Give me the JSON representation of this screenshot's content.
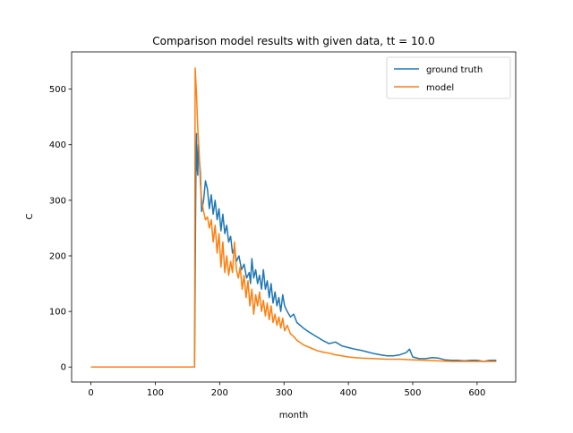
{
  "chart_data": {
    "type": "line",
    "title": "Comparison model results with given data, tt = 10.0",
    "xlabel": "month",
    "ylabel": "C",
    "xlim": [
      -30,
      660
    ],
    "ylim": [
      -27,
      567
    ],
    "xticks": [
      0,
      100,
      200,
      300,
      400,
      500,
      600
    ],
    "yticks": [
      0,
      100,
      200,
      300,
      400,
      500
    ],
    "grid": false,
    "legend_position": "top-right",
    "series": [
      {
        "name": "ground truth",
        "color": "#1f77b4",
        "points": [
          [
            0,
            0
          ],
          [
            160,
            0
          ],
          [
            161,
            0
          ],
          [
            163,
            330
          ],
          [
            164,
            420
          ],
          [
            165,
            360
          ],
          [
            166,
            345
          ],
          [
            167,
            400
          ],
          [
            168,
            380
          ],
          [
            170,
            350
          ],
          [
            172,
            280
          ],
          [
            175,
            300
          ],
          [
            178,
            335
          ],
          [
            181,
            320
          ],
          [
            184,
            285
          ],
          [
            187,
            310
          ],
          [
            190,
            275
          ],
          [
            193,
            300
          ],
          [
            196,
            265
          ],
          [
            199,
            285
          ],
          [
            202,
            245
          ],
          [
            205,
            275
          ],
          [
            208,
            240
          ],
          [
            211,
            255
          ],
          [
            214,
            225
          ],
          [
            217,
            235
          ],
          [
            220,
            205
          ],
          [
            223,
            215
          ],
          [
            226,
            190
          ],
          [
            230,
            200
          ],
          [
            234,
            175
          ],
          [
            238,
            185
          ],
          [
            242,
            160
          ],
          [
            246,
            170
          ],
          [
            248,
            150
          ],
          [
            250,
            195
          ],
          [
            253,
            160
          ],
          [
            256,
            175
          ],
          [
            259,
            150
          ],
          [
            262,
            165
          ],
          [
            265,
            140
          ],
          [
            268,
            175
          ],
          [
            271,
            140
          ],
          [
            274,
            155
          ],
          [
            277,
            125
          ],
          [
            280,
            150
          ],
          [
            283,
            115
          ],
          [
            286,
            135
          ],
          [
            289,
            110
          ],
          [
            292,
            125
          ],
          [
            295,
            100
          ],
          [
            298,
            130
          ],
          [
            301,
            110
          ],
          [
            305,
            100
          ],
          [
            310,
            90
          ],
          [
            315,
            95
          ],
          [
            320,
            80
          ],
          [
            330,
            70
          ],
          [
            340,
            62
          ],
          [
            350,
            55
          ],
          [
            360,
            48
          ],
          [
            370,
            42
          ],
          [
            380,
            45
          ],
          [
            390,
            38
          ],
          [
            400,
            35
          ],
          [
            410,
            32
          ],
          [
            420,
            30
          ],
          [
            430,
            27
          ],
          [
            440,
            24
          ],
          [
            450,
            22
          ],
          [
            460,
            20
          ],
          [
            470,
            20
          ],
          [
            480,
            22
          ],
          [
            490,
            26
          ],
          [
            495,
            32
          ],
          [
            500,
            18
          ],
          [
            510,
            15
          ],
          [
            520,
            15
          ],
          [
            530,
            17
          ],
          [
            540,
            16
          ],
          [
            550,
            13
          ],
          [
            560,
            12
          ],
          [
            570,
            12
          ],
          [
            580,
            11
          ],
          [
            590,
            12
          ],
          [
            600,
            12
          ],
          [
            610,
            10
          ],
          [
            620,
            12
          ],
          [
            630,
            12
          ]
        ]
      },
      {
        "name": "model",
        "color": "#ff7f0e",
        "points": [
          [
            0,
            0
          ],
          [
            160,
            0
          ],
          [
            161,
            0
          ],
          [
            162,
            538
          ],
          [
            164,
            490
          ],
          [
            166,
            430
          ],
          [
            168,
            390
          ],
          [
            170,
            330
          ],
          [
            172,
            300
          ],
          [
            175,
            280
          ],
          [
            178,
            265
          ],
          [
            181,
            270
          ],
          [
            184,
            250
          ],
          [
            187,
            265
          ],
          [
            190,
            225
          ],
          [
            193,
            255
          ],
          [
            196,
            205
          ],
          [
            199,
            240
          ],
          [
            202,
            180
          ],
          [
            205,
            225
          ],
          [
            208,
            170
          ],
          [
            211,
            200
          ],
          [
            214,
            165
          ],
          [
            217,
            190
          ],
          [
            220,
            170
          ],
          [
            223,
            225
          ],
          [
            226,
            175
          ],
          [
            229,
            160
          ],
          [
            232,
            180
          ],
          [
            235,
            140
          ],
          [
            238,
            165
          ],
          [
            241,
            125
          ],
          [
            244,
            155
          ],
          [
            247,
            110
          ],
          [
            250,
            140
          ],
          [
            253,
            95
          ],
          [
            256,
            130
          ],
          [
            259,
            110
          ],
          [
            262,
            135
          ],
          [
            265,
            100
          ],
          [
            268,
            120
          ],
          [
            271,
            92
          ],
          [
            274,
            115
          ],
          [
            277,
            85
          ],
          [
            280,
            110
          ],
          [
            283,
            80
          ],
          [
            286,
            95
          ],
          [
            289,
            75
          ],
          [
            292,
            90
          ],
          [
            295,
            70
          ],
          [
            298,
            88
          ],
          [
            301,
            65
          ],
          [
            305,
            75
          ],
          [
            310,
            60
          ],
          [
            315,
            55
          ],
          [
            320,
            48
          ],
          [
            330,
            40
          ],
          [
            340,
            35
          ],
          [
            350,
            30
          ],
          [
            360,
            27
          ],
          [
            370,
            25
          ],
          [
            380,
            22
          ],
          [
            390,
            20
          ],
          [
            400,
            18
          ],
          [
            410,
            17
          ],
          [
            420,
            16
          ],
          [
            440,
            15
          ],
          [
            460,
            14
          ],
          [
            480,
            14
          ],
          [
            500,
            13
          ],
          [
            520,
            12
          ],
          [
            540,
            11
          ],
          [
            560,
            10
          ],
          [
            580,
            10
          ],
          [
            600,
            10
          ],
          [
            615,
            10
          ],
          [
            630,
            10
          ]
        ]
      }
    ]
  }
}
